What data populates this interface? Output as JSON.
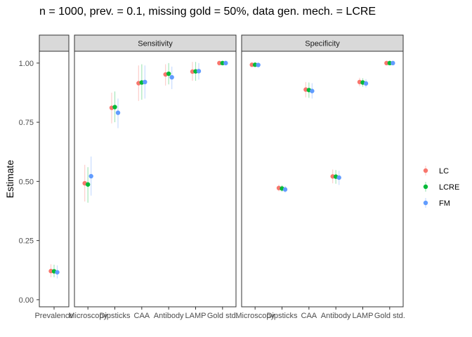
{
  "chart_data": {
    "type": "scatter",
    "title": "n = 1000, prev. = 0.1, missing gold = 50%, data gen. mech. = LCRE",
    "ylabel": "Estimate",
    "xlabel": "",
    "ylim": [
      -0.03,
      1.05
    ],
    "yticks": [
      "0.00",
      "0.25",
      "0.50",
      "0.75",
      "1.00"
    ],
    "grid": false,
    "legend_position": "right",
    "series": [
      {
        "name": "LC",
        "color": "#F8766D"
      },
      {
        "name": "LCRE",
        "color": "#00BA38"
      },
      {
        "name": "FM",
        "color": "#619CFF"
      }
    ],
    "panels": [
      {
        "strip": "",
        "categories": [
          "Prevalence"
        ],
        "points": [
          {
            "category": "Prevalence",
            "values": [
              0.121,
              0.12,
              0.116
            ],
            "lower": [
              0.095,
              0.095,
              0.09
            ],
            "upper": [
              0.15,
              0.148,
              0.145
            ]
          }
        ]
      },
      {
        "strip": "Sensitivity",
        "categories": [
          "Microscopy",
          "Dipsticks",
          "CAA",
          "Antibody",
          "LAMP",
          "Gold std."
        ],
        "points": [
          {
            "category": "Microscopy",
            "values": [
              0.492,
              0.487,
              0.522
            ],
            "lower": [
              0.415,
              0.41,
              0.44
            ],
            "upper": [
              0.57,
              0.56,
              0.605
            ]
          },
          {
            "category": "Dipsticks",
            "values": [
              0.811,
              0.814,
              0.79
            ],
            "lower": [
              0.745,
              0.75,
              0.725
            ],
            "upper": [
              0.875,
              0.88,
              0.85
            ]
          },
          {
            "category": "CAA",
            "values": [
              0.915,
              0.918,
              0.92
            ],
            "lower": [
              0.84,
              0.845,
              0.85
            ],
            "upper": [
              0.99,
              0.995,
              0.99
            ]
          },
          {
            "category": "Antibody",
            "values": [
              0.952,
              0.955,
              0.94
            ],
            "lower": [
              0.905,
              0.91,
              0.89
            ],
            "upper": [
              0.995,
              1.0,
              0.985
            ]
          },
          {
            "category": "LAMP",
            "values": [
              0.964,
              0.965,
              0.966
            ],
            "lower": [
              0.925,
              0.925,
              0.93
            ],
            "upper": [
              1.005,
              1.005,
              1.0
            ]
          },
          {
            "category": "Gold std.",
            "values": [
              1.0,
              1.0,
              1.0
            ],
            "lower": [
              1.0,
              1.0,
              1.0
            ],
            "upper": [
              1.0,
              1.0,
              1.0
            ]
          }
        ]
      },
      {
        "strip": "Specificity",
        "categories": [
          "Microscopy",
          "Dipsticks",
          "CAA",
          "Antibody",
          "LAMP",
          "Gold std."
        ],
        "points": [
          {
            "category": "Microscopy",
            "values": [
              0.993,
              0.993,
              0.992
            ],
            "lower": [
              0.988,
              0.988,
              0.987
            ],
            "upper": [
              0.998,
              0.998,
              0.997
            ]
          },
          {
            "category": "Dipsticks",
            "values": [
              0.472,
              0.47,
              0.466
            ],
            "lower": [
              0.458,
              0.456,
              0.452
            ],
            "upper": [
              0.486,
              0.484,
              0.48
            ]
          },
          {
            "category": "CAA",
            "values": [
              0.888,
              0.886,
              0.882
            ],
            "lower": [
              0.855,
              0.853,
              0.85
            ],
            "upper": [
              0.92,
              0.918,
              0.915
            ]
          },
          {
            "category": "Antibody",
            "values": [
              0.521,
              0.52,
              0.516
            ],
            "lower": [
              0.492,
              0.49,
              0.485
            ],
            "upper": [
              0.55,
              0.548,
              0.545
            ]
          },
          {
            "category": "LAMP",
            "values": [
              0.92,
              0.918,
              0.914
            ],
            "lower": [
              0.902,
              0.9,
              0.897
            ],
            "upper": [
              0.938,
              0.936,
              0.932
            ]
          },
          {
            "category": "Gold std.",
            "values": [
              1.0,
              1.0,
              1.0
            ],
            "lower": [
              1.0,
              1.0,
              1.0
            ],
            "upper": [
              1.0,
              1.0,
              1.0
            ]
          }
        ]
      }
    ]
  }
}
